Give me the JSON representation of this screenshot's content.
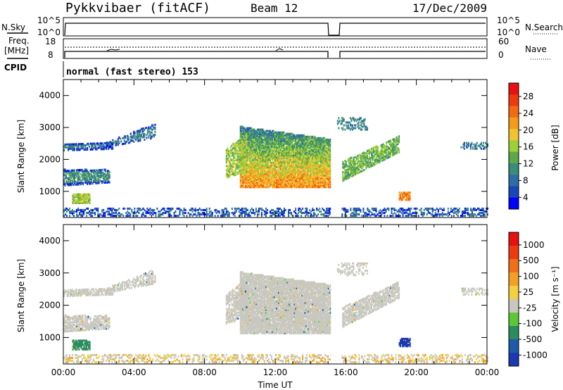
{
  "header": {
    "station": "Pykkvibaer (fitACF)",
    "beam": "Beam 12",
    "date": "17/Dec/2009"
  },
  "info_panels": {
    "nsky_label": "N.Sky",
    "nsky_ticks": [
      "10^5",
      "10^0"
    ],
    "nsearch_label": "N.Search",
    "nsearch_ticks": [
      "10^5",
      "10^0"
    ],
    "freq_label": "Freq.",
    "freq_unit": "[MHz]",
    "freq_ticks": [
      "18",
      "8"
    ],
    "nave_label": "Nave",
    "nave_ticks": [
      "60",
      "0"
    ],
    "cpid_label": "CPID",
    "cpid_text": "normal (fast stereo) 153"
  },
  "chart_data": [
    {
      "type": "heatmap",
      "name": "power",
      "ylabel": "Slant Range [km]",
      "yticks": [
        "4000",
        "3000",
        "2000",
        "1000"
      ],
      "ylim": [
        180,
        4500
      ],
      "xlim": [
        0,
        24
      ],
      "colorbar_label": "Power [dB]",
      "colorbar_ticks": [
        "28",
        "24",
        "20",
        "16",
        "12",
        "8",
        "4"
      ],
      "colors": [
        "#0000ff",
        "#1a47b8",
        "#2e6da4",
        "#3a8c7c",
        "#5da84a",
        "#9ccf3a",
        "#f2c230",
        "#f59a1a",
        "#f26a12",
        "#ee3a10",
        "#e81010"
      ]
    },
    {
      "type": "heatmap",
      "name": "velocity",
      "ylabel": "Slant Range [km]",
      "yticks": [
        "4000",
        "3000",
        "2000",
        "1000"
      ],
      "ylim": [
        180,
        4500
      ],
      "xlim": [
        0,
        24
      ],
      "xlabel": "Time UT",
      "xticks": [
        "00:00",
        "04:00",
        "08:00",
        "12:00",
        "16:00",
        "20:00",
        "00:00"
      ],
      "colorbar_label": "Velocity [m s⁻¹]",
      "colorbar_ticks": [
        "1000",
        "500",
        "100",
        "25",
        "-25",
        "-100",
        "-500",
        "-1000"
      ],
      "colors": [
        "#1b39b0",
        "#1f5aa8",
        "#2b8c60",
        "#5cc838",
        "#c8c8c0",
        "#f2d040",
        "#f2a028",
        "#f07018",
        "#ee3a10",
        "#e81010"
      ]
    }
  ]
}
